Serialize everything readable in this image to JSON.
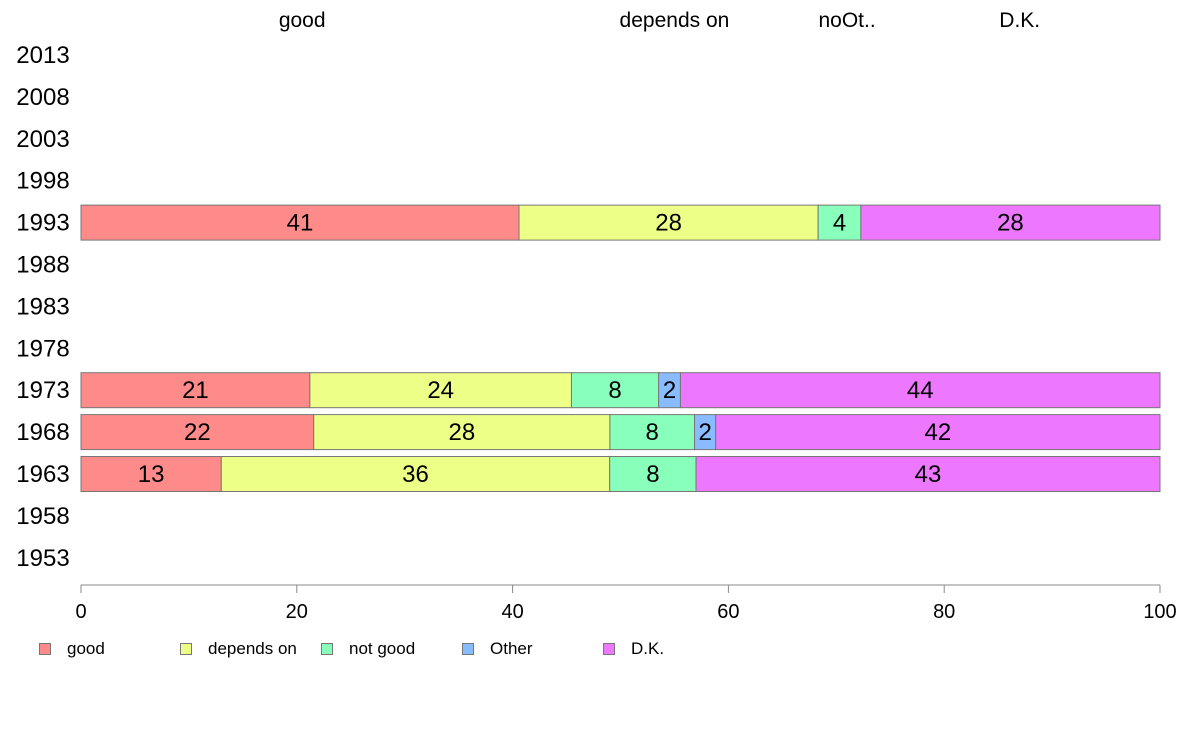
{
  "chart_data": {
    "type": "bar",
    "orientation": "horizontal",
    "stacked": true,
    "categories": [
      "2013",
      "2008",
      "2003",
      "1998",
      "1993",
      "1988",
      "1983",
      "1978",
      "1973",
      "1968",
      "1963",
      "1958",
      "1953"
    ],
    "series": [
      {
        "name": "good",
        "color": "#ff8a8a",
        "values": [
          null,
          null,
          null,
          null,
          41,
          null,
          null,
          null,
          21,
          22,
          13,
          null,
          null
        ]
      },
      {
        "name": "depends on",
        "color": "#eeff88",
        "values": [
          null,
          null,
          null,
          null,
          28,
          null,
          null,
          null,
          24,
          28,
          36,
          null,
          null
        ]
      },
      {
        "name": "not good",
        "color": "#88ffbb",
        "values": [
          null,
          null,
          null,
          null,
          4,
          null,
          null,
          null,
          8,
          8,
          8,
          null,
          null
        ]
      },
      {
        "name": "Other",
        "color": "#88bbff",
        "values": [
          null,
          null,
          null,
          null,
          0,
          null,
          null,
          null,
          2,
          2,
          0,
          null,
          null
        ]
      },
      {
        "name": "D.K.",
        "color": "#ee77ff",
        "values": [
          null,
          null,
          null,
          null,
          28,
          null,
          null,
          null,
          44,
          42,
          43,
          null,
          null
        ]
      }
    ],
    "header_labels": [
      "good",
      "depends on",
      "noOt..",
      "D.K."
    ],
    "xlim": [
      0,
      100
    ],
    "xticks": [
      "0",
      "20",
      "40",
      "60",
      "80",
      "100"
    ],
    "legend_position": "bottom-left",
    "grid": false
  }
}
